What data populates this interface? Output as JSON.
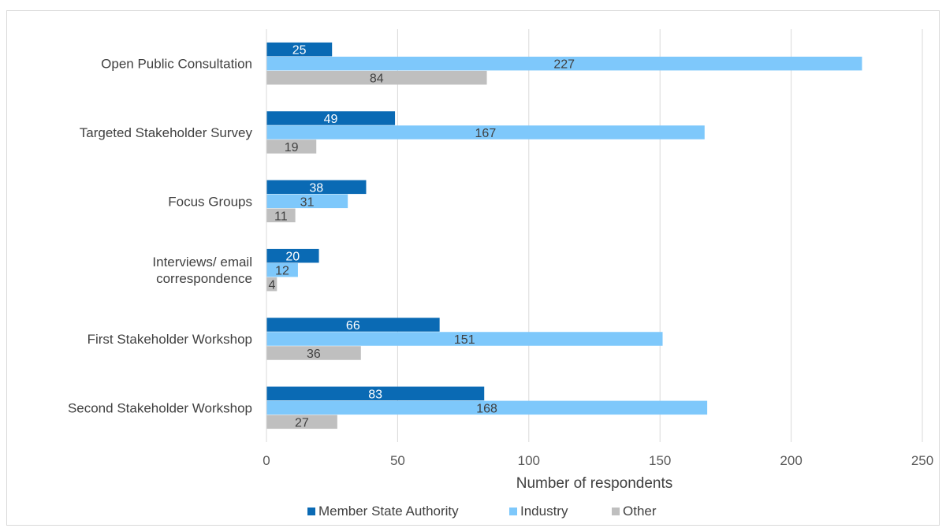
{
  "chart_data": {
    "type": "bar",
    "orientation": "horizontal",
    "categories": [
      "Open Public Consultation",
      "Targeted Stakeholder Survey",
      "Focus Groups",
      "Interviews/ email correspondence",
      "First Stakeholder Workshop",
      "Second Stakeholder Workshop"
    ],
    "category_lines": [
      [
        "Open Public Consultation"
      ],
      [
        "Targeted Stakeholder Survey"
      ],
      [
        "Focus Groups"
      ],
      [
        "Interviews/ email",
        "correspondence"
      ],
      [
        "First Stakeholder Workshop"
      ],
      [
        "Second Stakeholder Workshop"
      ]
    ],
    "series": [
      {
        "name": "Member State Authority",
        "color": "#0a6ab4",
        "label_color": "#ffffff",
        "values": [
          25,
          49,
          38,
          20,
          66,
          83
        ]
      },
      {
        "name": "Industry",
        "color": "#7ec8fb",
        "label_color": "#404040",
        "values": [
          227,
          167,
          31,
          12,
          151,
          168
        ]
      },
      {
        "name": "Other",
        "color": "#bfbfbf",
        "label_color": "#404040",
        "values": [
          84,
          19,
          11,
          4,
          36,
          27
        ]
      }
    ],
    "xlabel": "Number of respondents",
    "ylabel": "",
    "xlim": [
      0,
      250
    ],
    "xticks": [
      "0",
      "50",
      "100",
      "150",
      "200",
      "250"
    ],
    "grid": "vertical",
    "legend": "bottom"
  }
}
